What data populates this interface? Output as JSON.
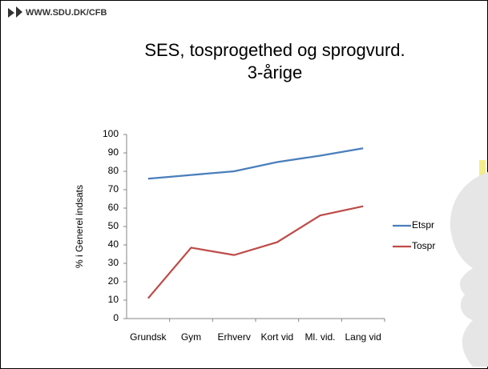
{
  "header": "WWW.SDU.DK/CFB",
  "chart_data": {
    "type": "line",
    "title": "SES, tosprogethed og sprogvurd.",
    "subtitle": "3-årige",
    "y_label": "% i Generel indsats",
    "categories": [
      "Grundsk",
      "Gym",
      "Erhverv",
      "Kort vid",
      "Ml. vid.",
      "Lang vid"
    ],
    "series": [
      {
        "name": "Etspr",
        "color": "#4a7ebb",
        "values": [
          76,
          78,
          80,
          85,
          88.5,
          92.5
        ]
      },
      {
        "name": "Tospr",
        "color": "#be4b48",
        "values": [
          11,
          38.5,
          34.5,
          41.5,
          56,
          61
        ]
      }
    ],
    "ylim": [
      0,
      100
    ],
    "yticks": [
      0,
      10,
      20,
      30,
      40,
      50,
      60,
      70,
      80,
      90,
      100
    ],
    "grid": false,
    "legend": "right"
  }
}
